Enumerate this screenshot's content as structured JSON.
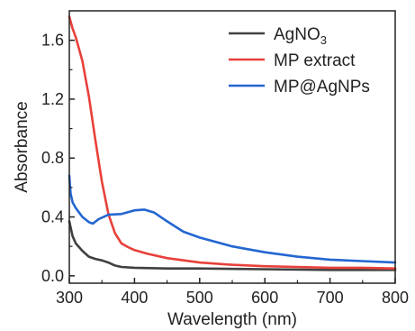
{
  "chart_data": {
    "type": "line",
    "title": "",
    "xlabel": "Wavelength (nm)",
    "ylabel": "Absorbance",
    "xlim": [
      300,
      800
    ],
    "ylim": [
      -0.05,
      1.8
    ],
    "xticks": [
      300,
      400,
      500,
      600,
      700,
      800
    ],
    "xtick_labels": [
      "300",
      "400",
      "500",
      "600",
      "700",
      "800"
    ],
    "yticks": [
      0.0,
      0.4,
      0.8,
      1.2,
      1.6
    ],
    "ytick_labels": [
      "0.0",
      "0.4",
      "0.8",
      "1.2",
      "1.6"
    ],
    "grid": false,
    "legend_position": "top-right",
    "series": [
      {
        "name": "AgNO",
        "name_subscript": "3",
        "color": "#404040",
        "x": [
          300,
          305,
          310,
          320,
          330,
          340,
          350,
          360,
          370,
          380,
          400,
          450,
          500,
          600,
          700,
          800
        ],
        "y": [
          0.37,
          0.27,
          0.22,
          0.17,
          0.13,
          0.115,
          0.105,
          0.09,
          0.07,
          0.06,
          0.055,
          0.05,
          0.05,
          0.045,
          0.04,
          0.04
        ]
      },
      {
        "name": "MP extract",
        "color": "#e8403a",
        "x": [
          300,
          305,
          310,
          320,
          330,
          340,
          350,
          360,
          370,
          380,
          390,
          400,
          420,
          450,
          500,
          550,
          600,
          650,
          700,
          750,
          800
        ],
        "y": [
          1.76,
          1.68,
          1.62,
          1.46,
          1.22,
          0.92,
          0.64,
          0.42,
          0.29,
          0.22,
          0.195,
          0.175,
          0.15,
          0.12,
          0.09,
          0.075,
          0.065,
          0.06,
          0.055,
          0.055,
          0.05
        ]
      },
      {
        "name": "MP@AgNPs",
        "color": "#2366d1",
        "x": [
          300,
          302,
          305,
          310,
          320,
          330,
          336,
          345,
          360,
          380,
          400,
          415,
          430,
          450,
          475,
          500,
          550,
          600,
          650,
          700,
          750,
          800
        ],
        "y": [
          0.68,
          0.56,
          0.5,
          0.46,
          0.4,
          0.365,
          0.355,
          0.385,
          0.415,
          0.42,
          0.445,
          0.45,
          0.43,
          0.37,
          0.3,
          0.26,
          0.2,
          0.16,
          0.13,
          0.11,
          0.1,
          0.09
        ]
      }
    ]
  }
}
